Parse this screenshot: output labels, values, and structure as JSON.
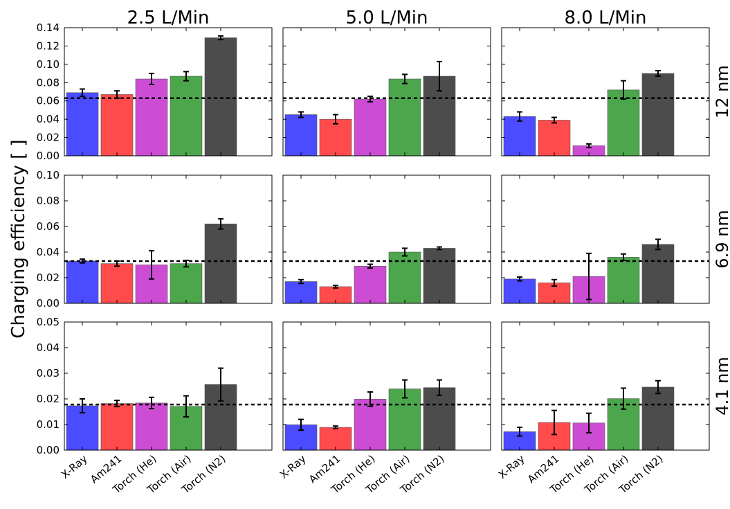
{
  "chart_data": {
    "type": "bar",
    "ylabel": "Charging efficiency [ ]",
    "categories": [
      "X-Ray",
      "Am241",
      "Torch (He)",
      "Torch (Air)",
      "Torch (N2)"
    ],
    "colors": [
      "#4b4bff",
      "#ff4b4b",
      "#cc4dd4",
      "#4ca64c",
      "#4c4c4c"
    ],
    "columns": [
      "2.5 L/Min",
      "5.0 L/Min",
      "8.0 L/Min"
    ],
    "rows": [
      {
        "label": "12 nm",
        "ylim": [
          0,
          0.14
        ],
        "yticks": [
          "0.00",
          "0.02",
          "0.04",
          "0.06",
          "0.08",
          "0.10",
          "0.12",
          "0.14"
        ],
        "reference": 0.063,
        "panels": [
          {
            "values": [
              0.069,
              0.067,
              0.084,
              0.087,
              0.129
            ],
            "errors": [
              0.004,
              0.004,
              0.006,
              0.005,
              0.002
            ]
          },
          {
            "values": [
              0.045,
              0.04,
              0.062,
              0.084,
              0.087
            ],
            "errors": [
              0.003,
              0.005,
              0.003,
              0.005,
              0.016
            ]
          },
          {
            "values": [
              0.043,
              0.039,
              0.011,
              0.072,
              0.09
            ],
            "errors": [
              0.005,
              0.003,
              0.002,
              0.01,
              0.003
            ]
          }
        ]
      },
      {
        "label": "6.9 nm",
        "ylim": [
          0,
          0.1
        ],
        "yticks": [
          "0.00",
          "0.02",
          "0.04",
          "0.06",
          "0.08",
          "0.10"
        ],
        "reference": 0.033,
        "panels": [
          {
            "values": [
              0.033,
              0.031,
              0.03,
              0.031,
              0.062
            ],
            "errors": [
              0.0015,
              0.002,
              0.011,
              0.0025,
              0.004
            ]
          },
          {
            "values": [
              0.017,
              0.013,
              0.029,
              0.04,
              0.043
            ],
            "errors": [
              0.0015,
              0.001,
              0.0015,
              0.003,
              0.001
            ]
          },
          {
            "values": [
              0.019,
              0.016,
              0.021,
              0.036,
              0.046
            ],
            "errors": [
              0.0015,
              0.0025,
              0.018,
              0.0025,
              0.004
            ]
          }
        ]
      },
      {
        "label": "4.1 nm",
        "ylim": [
          0,
          0.05
        ],
        "yticks": [
          "0.00",
          "0.01",
          "0.02",
          "0.03",
          "0.04",
          "0.05"
        ],
        "reference": 0.0178,
        "panels": [
          {
            "values": [
              0.0173,
              0.0182,
              0.0184,
              0.0171,
              0.0256
            ],
            "errors": [
              0.0027,
              0.0012,
              0.0022,
              0.0041,
              0.0064
            ]
          },
          {
            "values": [
              0.0099,
              0.0089,
              0.0199,
              0.0239,
              0.0244
            ],
            "errors": [
              0.0021,
              0.0005,
              0.0028,
              0.0035,
              0.003
            ]
          },
          {
            "values": [
              0.0072,
              0.0108,
              0.0106,
              0.0201,
              0.0246
            ],
            "errors": [
              0.0017,
              0.0047,
              0.0038,
              0.0041,
              0.0025
            ]
          }
        ]
      }
    ],
    "grid": false,
    "legend": "none"
  }
}
